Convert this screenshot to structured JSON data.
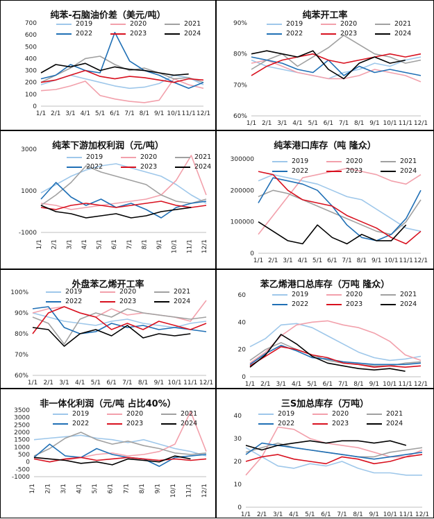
{
  "colors": {
    "2019": "#9ec7ea",
    "2020": "#f2a0ab",
    "2021": "#a0a0a0",
    "2022": "#1f6fb5",
    "2023": "#d8101e",
    "2024": "#000000"
  },
  "months12": [
    "1/1",
    "2/1",
    "3/1",
    "4/1",
    "5/1",
    "6/1",
    "7/1",
    "8/1",
    "9/1",
    "10/1",
    "11/1",
    "12/1"
  ],
  "chart_data": [
    {
      "type": "line",
      "title": "纯苯-石脑油价差（美元/吨）",
      "ylim": [
        0,
        700
      ],
      "yticks": [
        "0",
        "100",
        "200",
        "300",
        "400",
        "500",
        "600",
        "700"
      ],
      "series": [
        {
          "name": "2019",
          "values": [
            180,
            220,
            260,
            230,
            200,
            170,
            150,
            160,
            190,
            260,
            240,
            180
          ]
        },
        {
          "name": "2020",
          "values": [
            130,
            140,
            170,
            210,
            90,
            60,
            40,
            30,
            50,
            230,
            180,
            150
          ]
        },
        {
          "name": "2021",
          "values": [
            200,
            260,
            320,
            400,
            420,
            350,
            300,
            320,
            280,
            230,
            240,
            200
          ]
        },
        {
          "name": "2022",
          "values": [
            230,
            260,
            350,
            300,
            280,
            620,
            380,
            300,
            260,
            200,
            150,
            200
          ]
        },
        {
          "name": "2023",
          "values": [
            200,
            220,
            260,
            300,
            250,
            230,
            250,
            240,
            220,
            200,
            230,
            220
          ]
        },
        {
          "name": "2024",
          "values": [
            280,
            350,
            330,
            360,
            300,
            330,
            310,
            300,
            280,
            260,
            270,
            null
          ]
        }
      ]
    },
    {
      "type": "line",
      "title": "纯苯开工率",
      "ylim": [
        60,
        90
      ],
      "yticks": [
        "60%",
        "70%",
        "80%",
        "90%"
      ],
      "series": [
        {
          "name": "2019",
          "values": [
            78,
            76,
            75,
            74,
            73,
            72,
            74,
            75,
            77,
            76,
            78,
            79
          ]
        },
        {
          "name": "2020",
          "values": [
            77,
            78,
            76,
            74,
            73,
            72,
            72,
            73,
            75,
            74,
            73,
            71
          ]
        },
        {
          "name": "2021",
          "values": [
            75,
            78,
            80,
            76,
            79,
            82,
            86,
            83,
            80,
            79,
            77,
            78
          ]
        },
        {
          "name": "2022",
          "values": [
            79,
            78,
            77,
            75,
            74,
            78,
            73,
            76,
            74,
            75,
            74,
            73
          ]
        },
        {
          "name": "2023",
          "values": [
            73,
            76,
            78,
            79,
            80,
            78,
            77,
            78,
            79,
            80,
            79,
            80
          ]
        },
        {
          "name": "2024",
          "values": [
            80,
            81,
            80,
            79,
            81,
            75,
            72,
            77,
            79,
            77,
            78,
            null
          ]
        }
      ]
    },
    {
      "type": "line",
      "title": "纯苯下游加权利润（元/吨）",
      "ylim": [
        -1000,
        3000
      ],
      "yticks": [
        "-1000",
        "1000",
        "3000"
      ],
      "series": [
        {
          "name": "2019",
          "values": [
            900,
            1300,
            1700,
            2000,
            2200,
            2300,
            2100,
            1900,
            1700,
            1300,
            800,
            400
          ]
        },
        {
          "name": "2020",
          "values": [
            400,
            300,
            100,
            200,
            300,
            400,
            500,
            600,
            800,
            1500,
            2700,
            800
          ]
        },
        {
          "name": "2021",
          "values": [
            300,
            800,
            1400,
            2200,
            1900,
            1700,
            1500,
            1300,
            800,
            500,
            400,
            600
          ]
        },
        {
          "name": "2022",
          "values": [
            600,
            1400,
            700,
            300,
            600,
            200,
            400,
            100,
            -300,
            200,
            400,
            500
          ]
        },
        {
          "name": "2023",
          "values": [
            200,
            100,
            300,
            400,
            300,
            200,
            300,
            400,
            500,
            300,
            200,
            300
          ]
        },
        {
          "name": "2024",
          "values": [
            300,
            0,
            -100,
            -300,
            -200,
            -100,
            -300,
            -200,
            0,
            100,
            200,
            null
          ]
        }
      ]
    },
    {
      "type": "line",
      "title": "纯苯港口库存（吨 隆众）",
      "ylim": [
        0,
        300000
      ],
      "yticks": [
        "0",
        "100000",
        "200000",
        "300000"
      ],
      "series": [
        {
          "name": "2019",
          "values": [
            230000,
            250000,
            240000,
            230000,
            220000,
            200000,
            180000,
            170000,
            140000,
            110000,
            80000,
            70000
          ]
        },
        {
          "name": "2020",
          "values": [
            60000,
            120000,
            180000,
            240000,
            250000,
            260000,
            270000,
            260000,
            250000,
            230000,
            220000,
            250000
          ]
        },
        {
          "name": "2021",
          "values": [
            180000,
            200000,
            190000,
            170000,
            150000,
            130000,
            110000,
            90000,
            70000,
            60000,
            100000,
            170000
          ]
        },
        {
          "name": "2022",
          "values": [
            160000,
            240000,
            230000,
            220000,
            200000,
            150000,
            90000,
            50000,
            40000,
            60000,
            110000,
            200000
          ]
        },
        {
          "name": "2023",
          "values": [
            260000,
            250000,
            200000,
            170000,
            160000,
            150000,
            120000,
            100000,
            80000,
            50000,
            30000,
            70000
          ]
        },
        {
          "name": "2024",
          "values": [
            100000,
            70000,
            40000,
            30000,
            90000,
            50000,
            30000,
            60000,
            40000,
            40000,
            90000,
            null
          ]
        }
      ]
    },
    {
      "type": "line",
      "title": "外盘苯乙烯开工率",
      "ylim": [
        60,
        100
      ],
      "yticks": [
        "60%",
        "70%",
        "80%",
        "90%",
        "100%"
      ],
      "series": [
        {
          "name": "2019",
          "values": [
            90,
            88,
            86,
            85,
            84,
            86,
            87,
            85,
            84,
            83,
            85,
            86
          ]
        },
        {
          "name": "2020",
          "values": [
            90,
            92,
            93,
            90,
            88,
            92,
            89,
            90,
            89,
            88,
            86,
            96
          ]
        },
        {
          "name": "2021",
          "values": [
            88,
            85,
            75,
            87,
            90,
            88,
            92,
            90,
            89,
            88,
            87,
            88
          ]
        },
        {
          "name": "2022",
          "values": [
            92,
            93,
            83,
            80,
            81,
            85,
            83,
            84,
            82,
            83,
            82,
            81
          ]
        },
        {
          "name": "2023",
          "values": [
            80,
            90,
            93,
            90,
            88,
            82,
            85,
            82,
            86,
            84,
            82,
            85
          ]
        },
        {
          "name": "2024",
          "values": [
            83,
            82,
            74,
            80,
            82,
            79,
            84,
            78,
            80,
            79,
            80,
            null
          ]
        }
      ]
    },
    {
      "type": "line",
      "title": "苯乙烯港口总库存（万吨 隆众）",
      "ylim": [
        0,
        60
      ],
      "yticks": [
        "0",
        "20",
        "40",
        "60"
      ],
      "series": [
        {
          "name": "2019",
          "values": [
            22,
            28,
            38,
            39,
            36,
            30,
            24,
            18,
            14,
            12,
            13,
            15
          ]
        },
        {
          "name": "2020",
          "values": [
            10,
            18,
            30,
            38,
            40,
            41,
            38,
            36,
            32,
            26,
            16,
            12
          ]
        },
        {
          "name": "2021",
          "values": [
            12,
            20,
            25,
            20,
            16,
            12,
            10,
            9,
            8,
            8,
            10,
            11
          ]
        },
        {
          "name": "2022",
          "values": [
            9,
            17,
            23,
            19,
            14,
            13,
            11,
            10,
            9,
            9,
            9,
            10
          ]
        },
        {
          "name": "2023",
          "values": [
            8,
            15,
            22,
            20,
            16,
            14,
            10,
            9,
            7,
            8,
            7,
            8
          ]
        },
        {
          "name": "2024",
          "values": [
            7,
            16,
            31,
            24,
            15,
            10,
            8,
            6,
            5,
            6,
            4,
            null
          ]
        }
      ]
    },
    {
      "type": "line",
      "title": "非一体化利润（元/吨 占比40%）",
      "ylim": [
        -1000,
        3500
      ],
      "yticks": [
        "-1000",
        "-500",
        "0",
        "500",
        "1000",
        "1500",
        "2000",
        "2500",
        "3000",
        "3500"
      ],
      "series": [
        {
          "name": "2019",
          "values": [
            1500,
            1600,
            1700,
            1800,
            1600,
            1500,
            1300,
            1500,
            1200,
            900,
            700,
            400
          ]
        },
        {
          "name": "2020",
          "values": [
            300,
            200,
            100,
            300,
            500,
            600,
            400,
            500,
            700,
            1200,
            3400,
            700
          ]
        },
        {
          "name": "2021",
          "values": [
            400,
            900,
            1600,
            2000,
            1500,
            1200,
            1400,
            1100,
            900,
            600,
            500,
            600
          ]
        },
        {
          "name": "2022",
          "values": [
            300,
            1200,
            400,
            300,
            900,
            500,
            300,
            200,
            -300,
            300,
            400,
            500
          ]
        },
        {
          "name": "2023",
          "values": [
            200,
            0,
            200,
            300,
            100,
            200,
            300,
            200,
            100,
            200,
            100,
            200
          ]
        },
        {
          "name": "2024",
          "values": [
            300,
            200,
            100,
            -100,
            0,
            -200,
            200,
            100,
            0,
            400,
            200,
            null
          ]
        }
      ]
    },
    {
      "type": "line",
      "title": "三S加总库存（万吨）",
      "ylim": [
        0,
        40
      ],
      "yticks": [
        "0",
        "10",
        "20",
        "30",
        "40"
      ],
      "series": [
        {
          "name": "2019",
          "values": [
            26,
            22,
            18,
            17,
            19,
            18,
            20,
            17,
            15,
            15,
            14,
            14
          ]
        },
        {
          "name": "2020",
          "values": [
            14,
            22,
            35,
            34,
            30,
            28,
            27,
            26,
            24,
            22,
            22,
            25
          ]
        },
        {
          "name": "2021",
          "values": [
            24,
            26,
            28,
            26,
            25,
            24,
            23,
            22,
            22,
            24,
            25,
            26
          ]
        },
        {
          "name": "2022",
          "values": [
            23,
            28,
            27,
            26,
            25,
            24,
            23,
            22,
            21,
            22,
            23,
            24
          ]
        },
        {
          "name": "2023",
          "values": [
            20,
            22,
            23,
            21,
            20,
            19,
            22,
            21,
            19,
            20,
            22,
            23
          ]
        },
        {
          "name": "2024",
          "values": [
            27,
            25,
            27,
            28,
            29,
            28,
            29,
            29,
            28,
            29,
            27,
            null
          ]
        }
      ]
    }
  ]
}
